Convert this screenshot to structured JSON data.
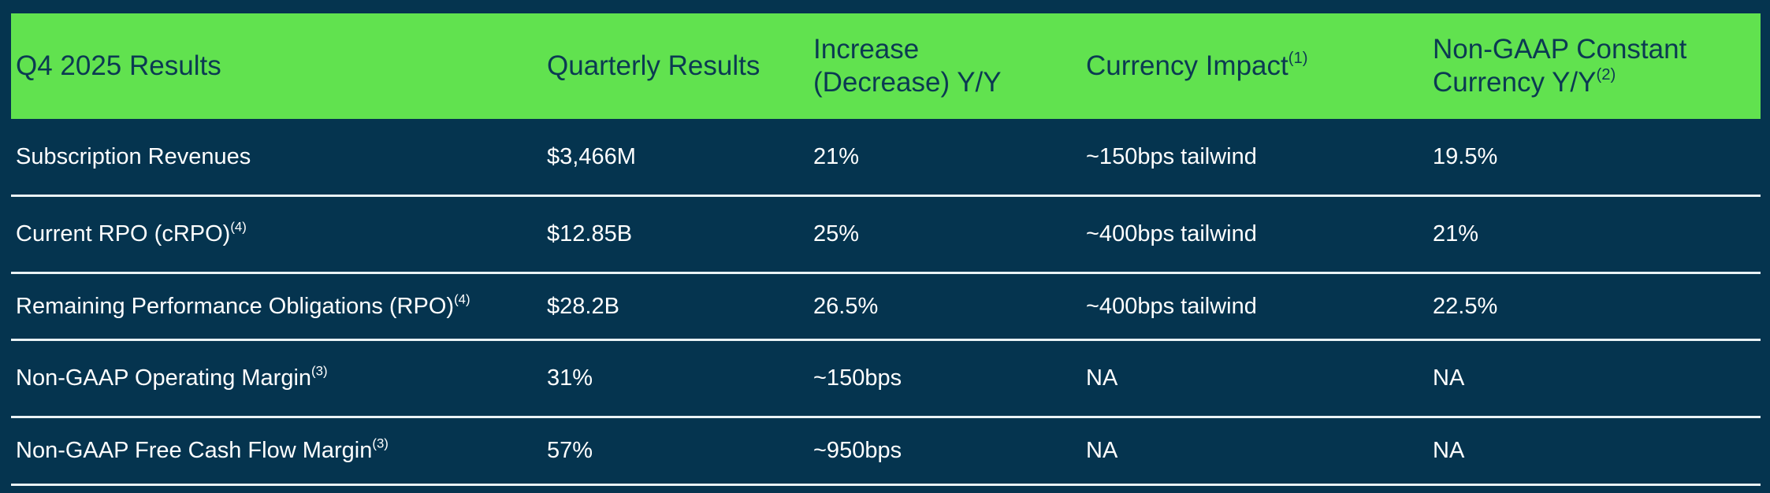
{
  "header": {
    "col1": "Q4 2025 Results",
    "col2": "Quarterly Results",
    "col3_line1": "Increase",
    "col3_line2": "(Decrease) Y/Y",
    "col4": "Currency Impact",
    "col4_sup": "(1)",
    "col5_line1": "Non-GAAP Constant",
    "col5_line2": "Currency Y/Y",
    "col5_sup": "(2)"
  },
  "rows": [
    {
      "label": "Subscription Revenues",
      "label_sup": "",
      "quarterly": "$3,466M",
      "change": "21%",
      "currency": "~150bps tailwind",
      "constant": "19.5%"
    },
    {
      "label": "Current RPO (cRPO)",
      "label_sup": "(4)",
      "quarterly": "$12.85B",
      "change": "25%",
      "currency": "~400bps tailwind",
      "constant": "21%"
    },
    {
      "label": "Remaining Performance Obligations (RPO)",
      "label_sup": "(4)",
      "quarterly": "$28.2B",
      "change": "26.5%",
      "currency": "~400bps tailwind",
      "constant": "22.5%"
    },
    {
      "label": "Non-GAAP Operating Margin",
      "label_sup": "(3)",
      "quarterly": "31%",
      "change": "~150bps",
      "currency": "NA",
      "constant": "NA"
    },
    {
      "label": "Non-GAAP Free Cash Flow Margin",
      "label_sup": "(3)",
      "quarterly": "57%",
      "change": "~950bps",
      "currency": "NA",
      "constant": "NA"
    }
  ],
  "colors": {
    "background": "#05344f",
    "header_background": "#61e24f",
    "header_text": "#0b3a52",
    "row_text": "#ffffff",
    "divider": "#eaf2f5"
  }
}
